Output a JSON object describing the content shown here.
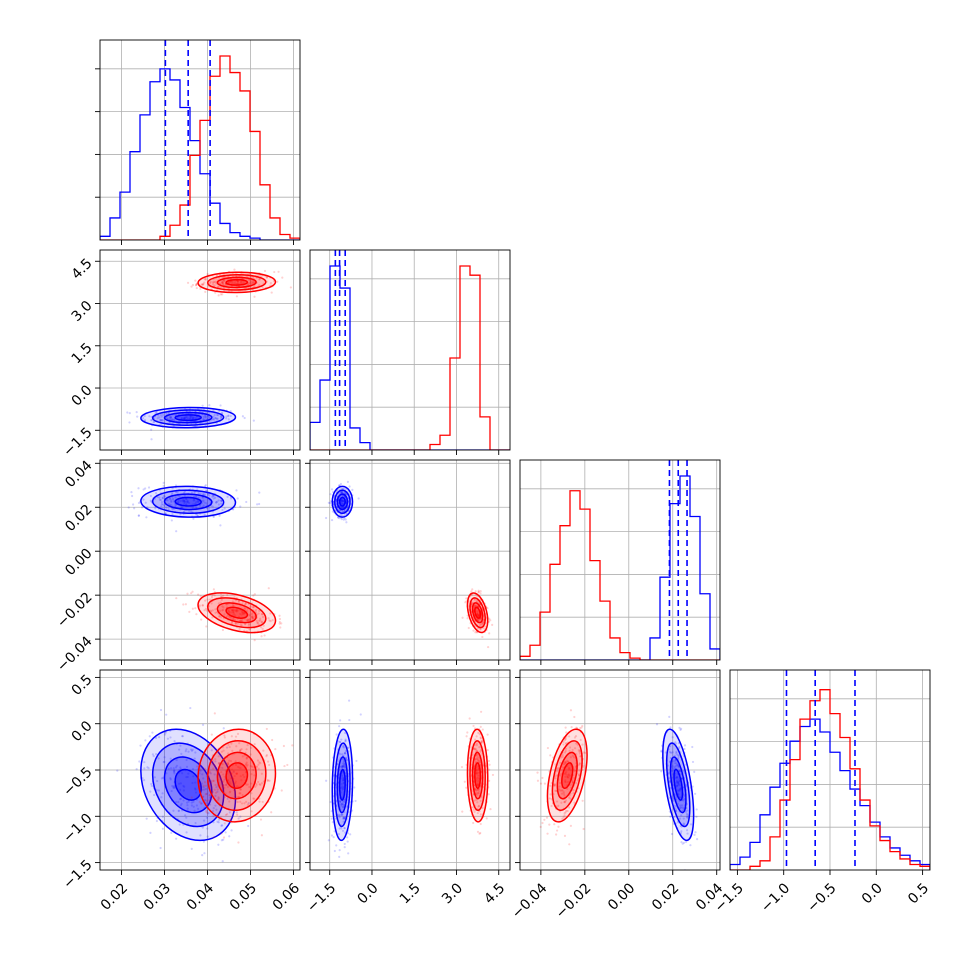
{
  "chart_data": {
    "type": "corner",
    "grid": true,
    "series": [
      {
        "color": "#0000ff",
        "mean": [
          0.0355,
          -1.05,
          0.0225,
          -0.66
        ],
        "std": [
          0.0055,
          0.18,
          0.0035,
          0.3
        ],
        "hist_values": [
          [
            0.02,
            0.12,
            0.26,
            0.48,
            0.68,
            0.86,
            0.93,
            0.87,
            0.72,
            0.54,
            0.36,
            0.2,
            0.09,
            0.04,
            0.02,
            0.01,
            0.0,
            0.0,
            0.0,
            0.0
          ],
          [
            0.15,
            0.38,
            1.0,
            0.88,
            0.12,
            0.04,
            0,
            0,
            0,
            0,
            0,
            0,
            0,
            0,
            0,
            0,
            0,
            0,
            0,
            0
          ],
          [
            0,
            0,
            0,
            0,
            0,
            0,
            0,
            0,
            0,
            0,
            0,
            0,
            0,
            0.12,
            0.45,
            0.85,
            1.0,
            0.78,
            0.36,
            0.06
          ],
          [
            0.03,
            0.07,
            0.15,
            0.3,
            0.45,
            0.58,
            0.7,
            0.78,
            0.82,
            0.75,
            0.64,
            0.54,
            0.44,
            0.35,
            0.26,
            0.18,
            0.12,
            0.08,
            0.05,
            0.03
          ]
        ]
      },
      {
        "color": "#ff0000",
        "mean": [
          0.0468,
          3.75,
          -0.028,
          -0.56
        ],
        "std": [
          0.0045,
          0.18,
          0.0045,
          0.25
        ],
        "hist_values": [
          [
            0,
            0,
            0,
            0,
            0,
            0,
            0.02,
            0.08,
            0.19,
            0.46,
            0.65,
            0.89,
            1.0,
            0.91,
            0.81,
            0.59,
            0.3,
            0.12,
            0.03,
            0.01
          ],
          [
            0,
            0,
            0,
            0,
            0,
            0,
            0,
            0,
            0,
            0,
            0,
            0,
            0.03,
            0.08,
            0.5,
            1.0,
            0.95,
            0.18,
            0,
            0
          ],
          [
            0.02,
            0.08,
            0.26,
            0.52,
            0.73,
            0.92,
            0.82,
            0.54,
            0.32,
            0.12,
            0.04,
            0.01,
            0,
            0,
            0,
            0,
            0,
            0,
            0,
            0
          ],
          [
            0,
            0,
            0.02,
            0.05,
            0.18,
            0.38,
            0.6,
            0.82,
            0.92,
            0.98,
            0.85,
            0.72,
            0.55,
            0.38,
            0.24,
            0.16,
            0.1,
            0.06,
            0.03,
            0.02
          ]
        ]
      }
    ],
    "quantile_lines": [
      [
        0.0302,
        0.0355,
        0.0406
      ],
      [
        -1.3,
        -1.15,
        -0.95
      ],
      [
        0.0185,
        0.0225,
        0.0265
      ],
      [
        -0.97,
        -0.66,
        -0.23
      ]
    ],
    "axes": [
      {
        "range": [
          0.015,
          0.0615
        ],
        "ticks": [
          0.02,
          0.03,
          0.04,
          0.05,
          0.06
        ],
        "tick_labels": [
          "0.02",
          "0.03",
          "0.04",
          "0.05",
          "0.06"
        ]
      },
      {
        "range": [
          -2.2,
          4.9
        ],
        "ticks": [
          -1.5,
          0.0,
          1.5,
          3.0,
          4.5
        ],
        "tick_labels": [
          "−1.5",
          "0.0",
          "1.5",
          "3.0",
          "4.5"
        ]
      },
      {
        "range": [
          -0.0495,
          0.0415
        ],
        "ticks": [
          -0.04,
          -0.02,
          0.0,
          0.02,
          0.04
        ],
        "tick_labels": [
          "−0.04",
          "−0.02",
          "0.00",
          "0.02",
          "0.04"
        ]
      },
      {
        "range": [
          -1.58,
          0.58
        ],
        "ticks": [
          -1.5,
          -1.0,
          -0.5,
          0.0,
          0.5
        ],
        "tick_labels": [
          "−1.5",
          "−1.0",
          "−0.5",
          "0.0",
          "0.5"
        ]
      }
    ]
  }
}
